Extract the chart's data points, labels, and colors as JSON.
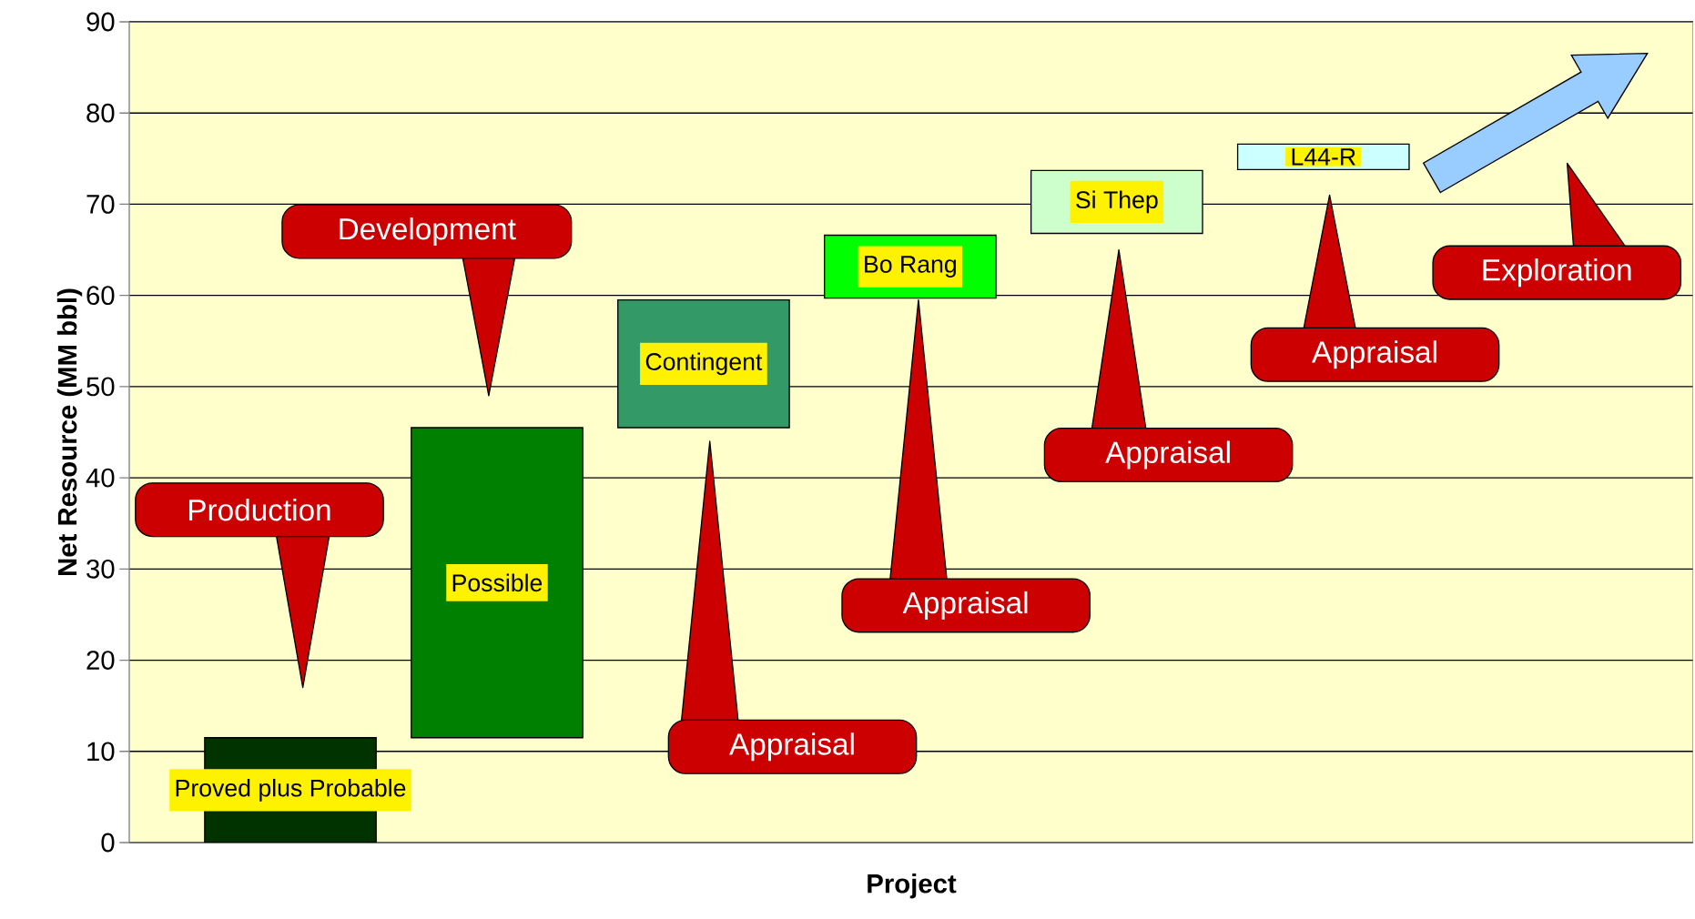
{
  "chart_data": {
    "type": "bar",
    "xlabel": "Project",
    "ylabel": "Net Resource (MM bbl)",
    "categories": [
      "Proved plus Probable",
      "Possible",
      "Contingent",
      "Bo Rang",
      "Si Thep",
      "L44-R"
    ],
    "values": [
      11.5,
      34,
      14,
      6.9,
      6.9,
      2.8
    ],
    "base": [
      0,
      11.5,
      45.5,
      59.7,
      66.8,
      73.8
    ],
    "colors": [
      "#003300",
      "#008000",
      "#339966",
      "#00ff00",
      "#ccffcc",
      "#ccffff"
    ],
    "ylim": [
      0,
      90
    ],
    "yticks": [
      0,
      10,
      20,
      30,
      40,
      50,
      60,
      70,
      80,
      90
    ],
    "grid": "y",
    "annotations": [
      "Production",
      "Development",
      "Appraisal",
      "Appraisal",
      "Appraisal",
      "Appraisal",
      "Exploration"
    ]
  }
}
